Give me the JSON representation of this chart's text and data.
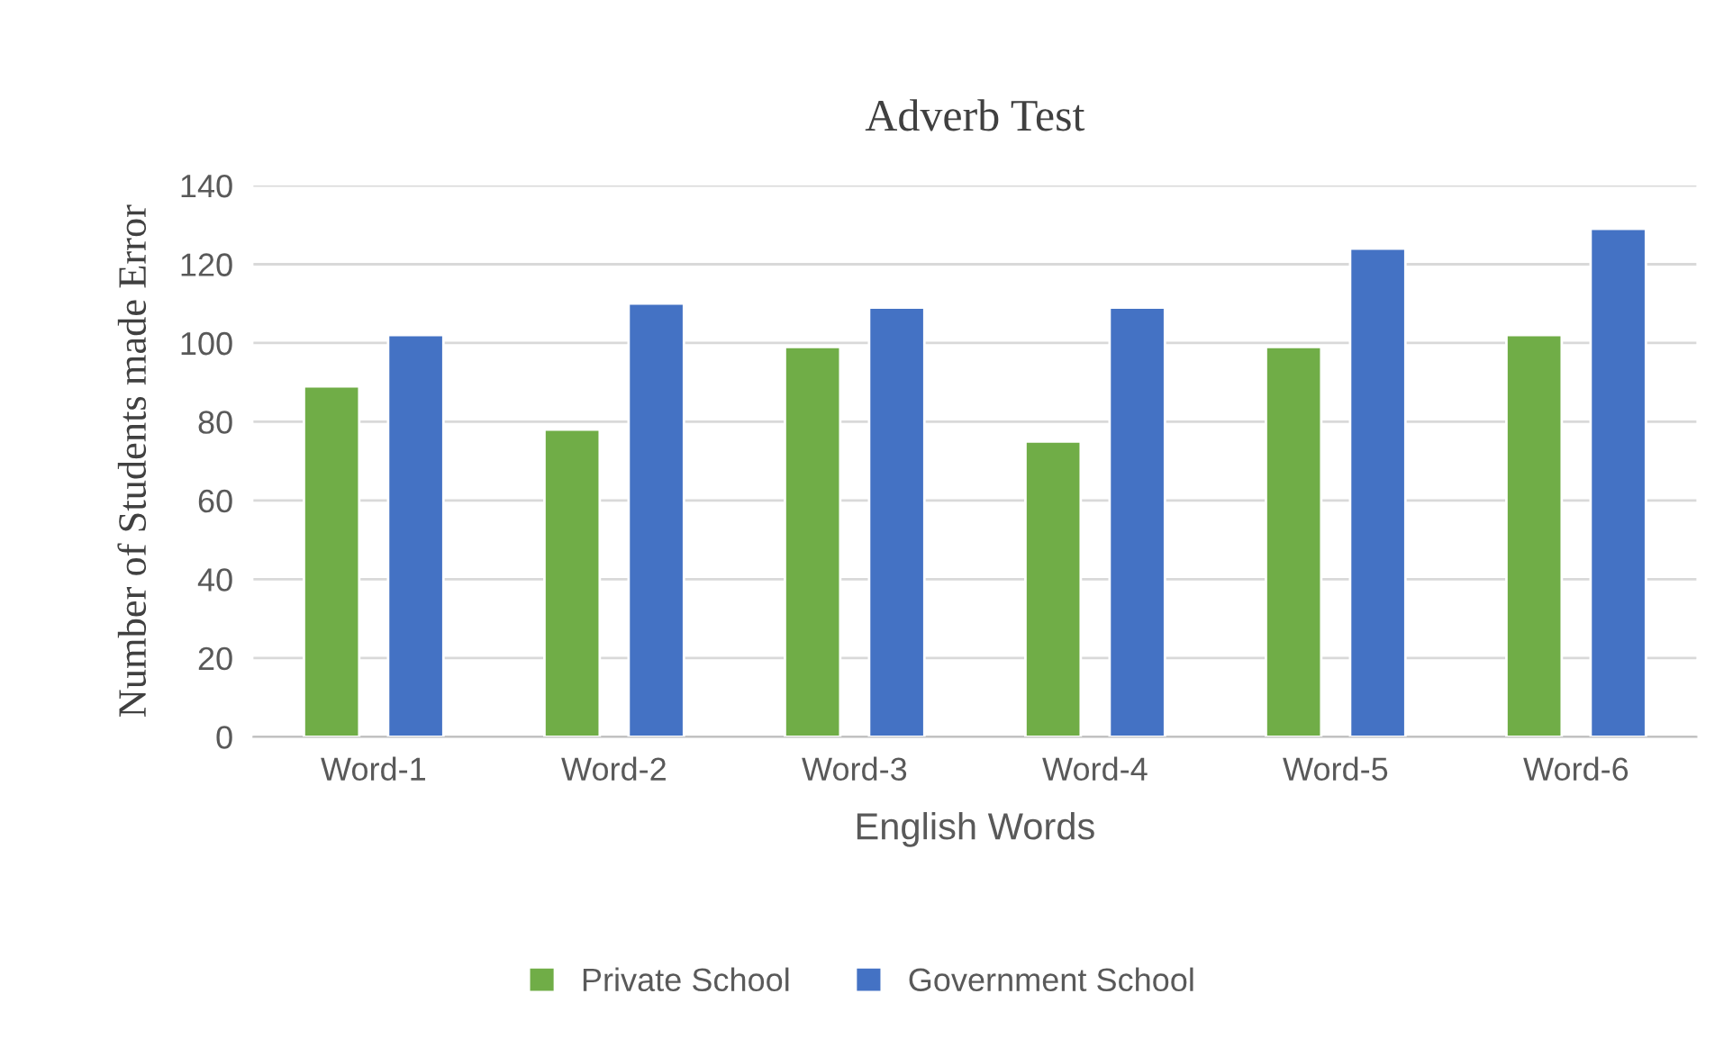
{
  "chart_data": {
    "type": "bar",
    "title": "Adverb Test",
    "xlabel": "English Words",
    "ylabel": "Number of Students made Error",
    "categories": [
      "Word-1",
      "Word-2",
      "Word-3",
      "Word-4",
      "Word-5",
      "Word-6"
    ],
    "series": [
      {
        "name": "Private School",
        "color": "#70ad47",
        "values": [
          89,
          78,
          99,
          75,
          99,
          102
        ]
      },
      {
        "name": "Government School",
        "color": "#4472c4",
        "values": [
          102,
          110,
          109,
          109,
          124,
          129
        ]
      }
    ],
    "ylim": [
      0,
      140
    ],
    "yticks": [
      0,
      20,
      40,
      60,
      80,
      100,
      120,
      140
    ],
    "grid": "y",
    "legend": "bottom"
  }
}
